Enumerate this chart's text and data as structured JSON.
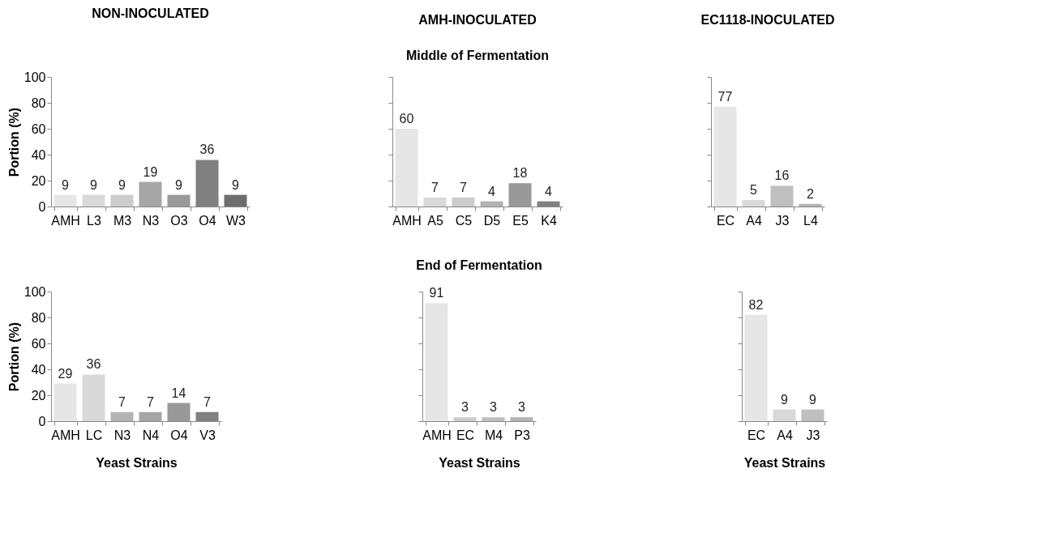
{
  "chart_data": [
    {
      "type": "bar",
      "title": "NON-INOCULATED",
      "ylabel": "Portion (%)",
      "categories": [
        "AMH",
        "L3",
        "M3",
        "N3",
        "O3",
        "O4",
        "W3"
      ],
      "values": [
        9,
        9,
        9,
        19,
        9,
        36,
        9
      ],
      "colors": [
        "#e6e6e6",
        "#d9d9d9",
        "#cccccc",
        "#a6a6a6",
        "#999999",
        "#808080",
        "#6e6e6e"
      ],
      "ylim": [
        0,
        100
      ],
      "yticks": [
        0,
        20,
        40,
        60,
        80,
        100
      ],
      "data_labels": true,
      "grid": false,
      "legend": false
    },
    {
      "type": "bar",
      "title": "AMH-INOCULATED",
      "subtitle": "Middle of Fermentation",
      "categories": [
        "AMH",
        "A5",
        "C5",
        "D5",
        "E5",
        "K4"
      ],
      "values": [
        60,
        7,
        7,
        4,
        18,
        4
      ],
      "colors": [
        "#e6e6e6",
        "#d9d9d9",
        "#cccccc",
        "#b3b3b3",
        "#999999",
        "#808080"
      ],
      "ylim": [
        0,
        100
      ],
      "yticks": [
        0,
        20,
        40,
        60,
        80,
        100
      ],
      "tick_labels": "x",
      "data_labels": true,
      "grid": false,
      "legend": false
    },
    {
      "type": "bar",
      "title": "EC1118-INOCULATED",
      "categories": [
        "EC",
        "A4",
        "J3",
        "L4"
      ],
      "values": [
        77,
        5,
        16,
        2
      ],
      "colors": [
        "#e6e6e6",
        "#d9d9d9",
        "#bfbfbf",
        "#b3b3b3"
      ],
      "ylim": [
        0,
        100
      ],
      "yticks": [
        0,
        20,
        40,
        60,
        80,
        100
      ],
      "tick_labels": "x",
      "data_labels": true,
      "grid": false,
      "legend": false
    },
    {
      "type": "bar",
      "xlabel": "Yeast Strains",
      "ylabel": "Portion (%)",
      "categories": [
        "AMH",
        "LC",
        "N3",
        "N4",
        "O4",
        "V3"
      ],
      "values": [
        29,
        36,
        7,
        7,
        14,
        7
      ],
      "colors": [
        "#e6e6e6",
        "#d9d9d9",
        "#b3b3b3",
        "#a6a6a6",
        "#999999",
        "#808080"
      ],
      "ylim": [
        0,
        100
      ],
      "yticks": [
        0,
        20,
        40,
        60,
        80,
        100
      ],
      "data_labels": true,
      "grid": false,
      "legend": false
    },
    {
      "type": "bar",
      "title": "End of Fermentation",
      "xlabel": "Yeast Strains",
      "categories": [
        "AMH",
        "EC",
        "M4",
        "P3"
      ],
      "values": [
        91,
        3,
        3,
        3
      ],
      "colors": [
        "#e6e6e6",
        "#cccccc",
        "#bfbfbf",
        "#b3b3b3"
      ],
      "ylim": [
        0,
        100
      ],
      "yticks": [
        0,
        20,
        40,
        60,
        80,
        100
      ],
      "tick_labels": "x",
      "data_labels": true,
      "grid": false,
      "legend": false
    },
    {
      "type": "bar",
      "xlabel": "Yeast Strains",
      "categories": [
        "EC",
        "A4",
        "J3"
      ],
      "values": [
        82,
        9,
        9
      ],
      "colors": [
        "#e6e6e6",
        "#d9d9d9",
        "#bfbfbf"
      ],
      "ylim": [
        0,
        100
      ],
      "yticks": [
        0,
        20,
        40,
        60,
        80,
        100
      ],
      "tick_labels": "x",
      "data_labels": true,
      "grid": false,
      "legend": false
    }
  ]
}
